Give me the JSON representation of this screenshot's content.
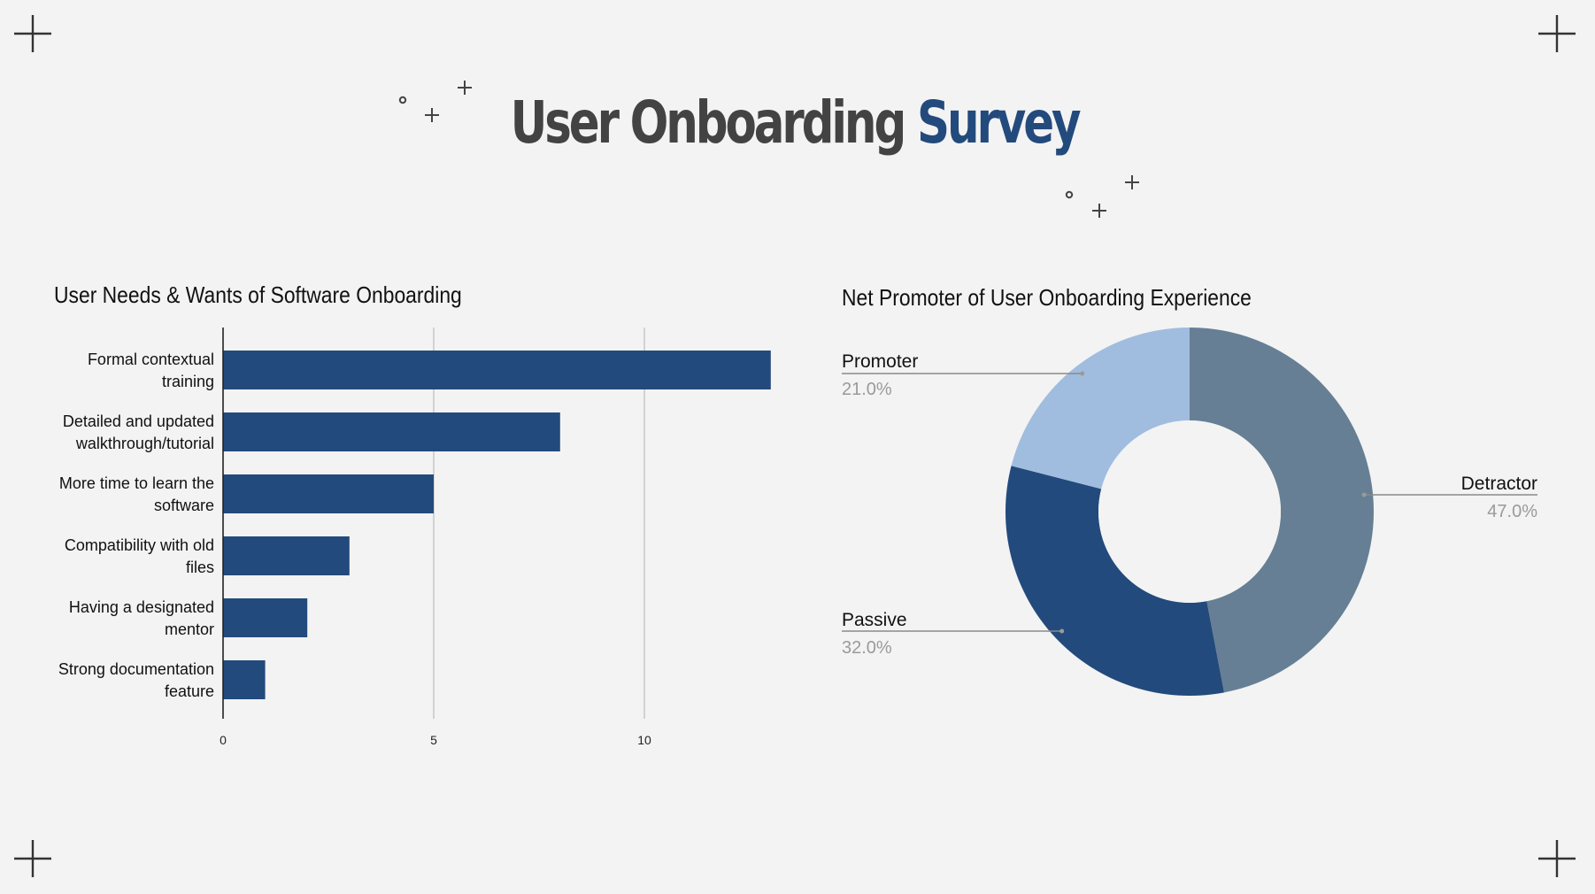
{
  "title": {
    "main": "User Onboarding",
    "accent": "Survey"
  },
  "colors": {
    "background": "#f3f3f3",
    "title": "#434343",
    "accent": "#234a7c",
    "bar": "#234a7c",
    "detractor": "#667f94",
    "passive": "#234a7c",
    "promoter": "#a0bddf"
  },
  "chart_data": [
    {
      "type": "bar",
      "orientation": "horizontal",
      "title": "User Needs & Wants of Software Onboarding",
      "categories": [
        [
          "Formal contextual",
          "training"
        ],
        [
          "Detailed and updated",
          "walkthrough/tutorial"
        ],
        [
          "More time to learn the",
          "software"
        ],
        [
          "Compatibility with old",
          "files"
        ],
        [
          "Having a designated",
          "mentor"
        ],
        [
          "Strong documentation",
          "feature"
        ]
      ],
      "values": [
        13,
        8,
        5,
        3,
        2,
        1
      ],
      "xlim": [
        0,
        13
      ],
      "xticks": [
        0,
        5,
        10
      ],
      "grid": true
    },
    {
      "type": "pie",
      "donut": true,
      "title": "Net Promoter of User Onboarding Experience",
      "slices": [
        {
          "label": "Detractor",
          "value": 47.0,
          "display": "47.0%"
        },
        {
          "label": "Passive",
          "value": 32.0,
          "display": "32.0%"
        },
        {
          "label": "Promoter",
          "value": 21.0,
          "display": "21.0%"
        }
      ]
    }
  ]
}
